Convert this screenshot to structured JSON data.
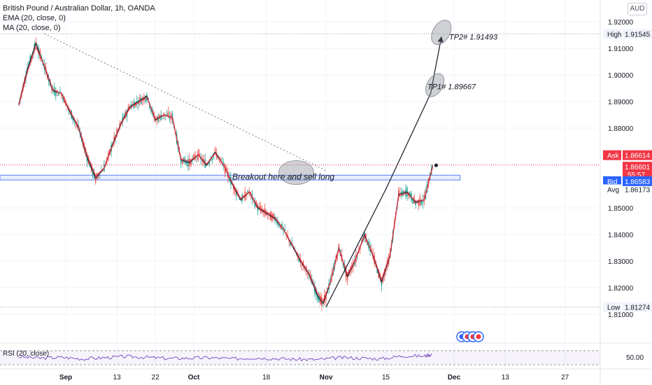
{
  "header": {
    "symbol_line": "British Pound / Australian Dollar, 1h, OANDA",
    "ema_line": "EMA (20, close, 0)",
    "ma_line": "MA (20, close, 0)",
    "currency_button": "AUD"
  },
  "chart_data": {
    "type": "line",
    "title": "British Pound / Australian Dollar, 1h, OANDA",
    "xlabel": "",
    "ylabel": "",
    "ylim": [
      1.8025,
      1.9245
    ],
    "grid": true,
    "x_ticks": [
      {
        "label": "Sep",
        "day": 1,
        "major": true
      },
      {
        "label": "13",
        "day": 13,
        "major": false
      },
      {
        "label": "22",
        "day": 22,
        "major": false
      },
      {
        "label": "Oct",
        "day": 31,
        "major": true
      },
      {
        "label": "18",
        "day": 48,
        "major": false
      },
      {
        "label": "Nov",
        "day": 62,
        "major": true
      },
      {
        "label": "15",
        "day": 76,
        "major": false
      },
      {
        "label": "Dec",
        "day": 92,
        "major": true
      },
      {
        "label": "13",
        "day": 104,
        "major": false
      },
      {
        "label": "27",
        "day": 118,
        "major": false
      }
    ],
    "y_ticks": [
      "1.92000",
      "1.91000",
      "1.90000",
      "1.89000",
      "1.88000",
      "1.85000",
      "1.84000",
      "1.83000",
      "1.82000",
      "1.81000"
    ],
    "series": [
      {
        "name": "",
        "color": "#131722",
        "x": [
          -10,
          -8,
          -6,
          -4,
          -2,
          0,
          2,
          4,
          6,
          8,
          10,
          12,
          14,
          16,
          18,
          20,
          22,
          24,
          26,
          28,
          30,
          32,
          34,
          36,
          38,
          40,
          42,
          44,
          46,
          48,
          50,
          52,
          54,
          56,
          58,
          60,
          61.3,
          63,
          65,
          67,
          69,
          71,
          73,
          75,
          77,
          79,
          81,
          83,
          85,
          87
        ],
        "values": [
          1.889,
          1.902,
          1.912,
          1.903,
          1.894,
          1.893,
          1.886,
          1.88,
          1.869,
          1.861,
          1.865,
          1.874,
          1.882,
          1.888,
          1.89,
          1.892,
          1.883,
          1.885,
          1.884,
          1.868,
          1.867,
          1.87,
          1.866,
          1.871,
          1.866,
          1.859,
          1.853,
          1.856,
          1.85,
          1.848,
          1.846,
          1.842,
          1.836,
          1.83,
          1.825,
          1.817,
          1.814,
          1.822,
          1.835,
          1.824,
          1.831,
          1.84,
          1.832,
          1.822,
          1.832,
          1.855,
          1.856,
          1.852,
          1.853,
          1.866
        ]
      },
      {
        "name": "EMA (20, close, 0)",
        "color": "#f23645",
        "x": [
          -10,
          -8,
          -6,
          -4,
          -2,
          0,
          2,
          4,
          6,
          8,
          10,
          12,
          14,
          16,
          18,
          20,
          22,
          24,
          26,
          28,
          30,
          32,
          34,
          36,
          38,
          40,
          42,
          44,
          46,
          48,
          50,
          52,
          54,
          56,
          58,
          60,
          61.3,
          63,
          65,
          67,
          69,
          71,
          73,
          75,
          77,
          79,
          81,
          83,
          85,
          87
        ],
        "values": [
          1.8885,
          1.901,
          1.9105,
          1.9035,
          1.8945,
          1.893,
          1.8865,
          1.8805,
          1.87,
          1.862,
          1.865,
          1.8735,
          1.8815,
          1.8875,
          1.8895,
          1.8915,
          1.8835,
          1.885,
          1.884,
          1.8685,
          1.8675,
          1.87,
          1.8665,
          1.8705,
          1.866,
          1.8595,
          1.8535,
          1.856,
          1.8505,
          1.8485,
          1.8465,
          1.842,
          1.8365,
          1.8305,
          1.8255,
          1.818,
          1.815,
          1.822,
          1.8345,
          1.825,
          1.831,
          1.8395,
          1.8325,
          1.823,
          1.8325,
          1.8545,
          1.8555,
          1.8525,
          1.853,
          1.8655
        ]
      }
    ],
    "rsi": {
      "label": "RSI (20, close)",
      "level_label": "50.00",
      "color": "#7e57c2",
      "x": [
        -10,
        -5,
        0,
        5,
        10,
        15,
        20,
        25,
        30,
        35,
        40,
        45,
        50,
        55,
        60,
        65,
        70,
        75,
        80,
        85,
        87
      ],
      "values": [
        52,
        49,
        51,
        47,
        50,
        53,
        51,
        48,
        49,
        50,
        47,
        50,
        48,
        46,
        45,
        50,
        49,
        47,
        55,
        54,
        60
      ]
    },
    "annotations": [
      {
        "text": "TP2# 1.91493",
        "value": 1.91493
      },
      {
        "text": "TP1# 1.89667",
        "value": 1.89667
      },
      {
        "text": "Breakout here and sell long",
        "value": 1.8617
      }
    ],
    "zone": {
      "from": 1.8605,
      "to": 1.8623
    },
    "trendline": {
      "x": [
        -4,
        62
      ],
      "values": [
        1.9155,
        1.864
      ]
    },
    "projection": {
      "x": [
        62,
        76,
        86.5,
        89
      ],
      "values": [
        1.8127,
        1.857,
        1.893,
        1.914
      ]
    },
    "price_labels": [
      {
        "tag": "High",
        "value": "1.91545",
        "style": "gray"
      },
      {
        "tag": "Ask",
        "value": "1.86614",
        "style": "red"
      },
      {
        "tag": "",
        "value": "1.86601",
        "sub": "55:57",
        "style": "red"
      },
      {
        "tag": "Bid",
        "value": "1.86583",
        "style": "blue"
      },
      {
        "tag": "Avg",
        "value": "1.86173",
        "style": "plain"
      },
      {
        "tag": "Low",
        "value": "1.81274",
        "style": "gray"
      }
    ],
    "colors": {
      "up": "#26a69a",
      "down": "#ef5350",
      "ema": "#f23645",
      "rsi": "#7e57c2",
      "zone": "#2962ff",
      "marker": "#2962ff"
    }
  }
}
